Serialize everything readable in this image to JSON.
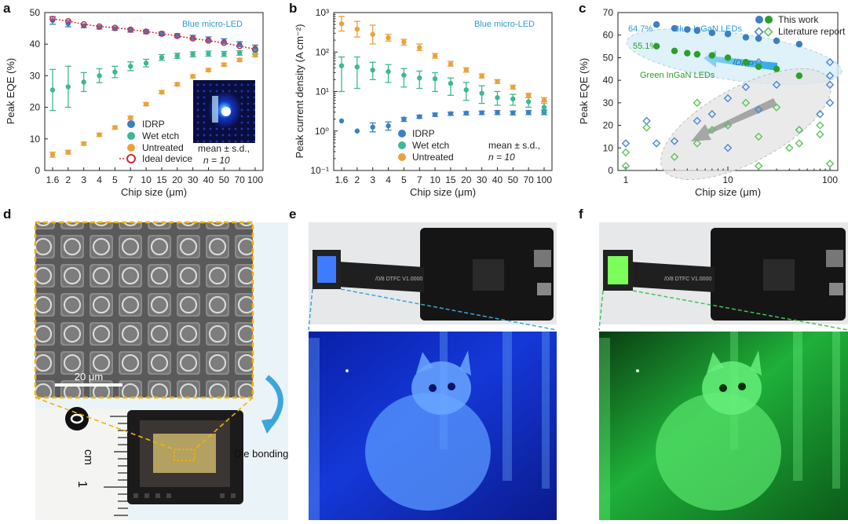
{
  "panel_labels": {
    "a": "a",
    "b": "b",
    "c": "c",
    "d": "d",
    "e": "e",
    "f": "f"
  },
  "colors": {
    "idrp": "#3b7fc4",
    "wet": "#3db894",
    "untreated": "#e8a23a",
    "ideal": "#d6263a",
    "blue_text": "#2a9bd1",
    "green_text": "#2aa02a",
    "lit_blue": "#4a86d8",
    "lit_green": "#5cc45c"
  },
  "chart_data": [
    {
      "type": "scatter",
      "panel": "a",
      "title": "Blue micro-LED",
      "xlabel": "Chip size (μm)",
      "ylabel": "Peak EQE (%)",
      "categories": [
        "1.6",
        "2",
        "3",
        "4",
        "5",
        "7",
        "10",
        "15",
        "20",
        "30",
        "40",
        "50",
        "70",
        "100"
      ],
      "ylim": [
        0,
        50
      ],
      "yticks": [
        "0",
        "10",
        "20",
        "30",
        "40",
        "50"
      ],
      "series": [
        {
          "name": "IDRP",
          "values": [
            47.5,
            46.5,
            45.8,
            45.3,
            44.9,
            44.4,
            43.9,
            43.3,
            42.7,
            42.1,
            41.5,
            40.9,
            40.0,
            38.8
          ],
          "err": [
            1.2,
            1.0,
            0.6,
            0.5,
            0.5,
            0.6,
            0.6,
            0.6,
            0.6,
            0.7,
            0.8,
            0.8,
            0.8,
            0.9
          ]
        },
        {
          "name": "Wet etch",
          "values": [
            25.5,
            26.5,
            28.0,
            30.0,
            31.2,
            33.0,
            34.0,
            35.8,
            36.3,
            36.8,
            37.0,
            36.9,
            37.2,
            37.5
          ],
          "err": [
            6.5,
            6.5,
            3.0,
            2.2,
            1.8,
            1.4,
            1.2,
            0.9,
            0.8,
            0.8,
            0.8,
            0.8,
            0.7,
            0.7
          ]
        },
        {
          "name": "Untreated",
          "values": [
            5.0,
            5.8,
            8.5,
            11.3,
            13.6,
            16.7,
            21.0,
            24.8,
            27.3,
            29.8,
            31.8,
            33.5,
            35.0,
            36.5
          ],
          "err": [
            0.8,
            0.6,
            0.5,
            0.5,
            0.5,
            0.5,
            0.5,
            0.5,
            0.5,
            0.5,
            0.5,
            0.5,
            0.5,
            0.5
          ]
        },
        {
          "name": "Ideal device",
          "values": [
            48.0,
            47.3,
            46.3,
            45.6,
            45.2,
            44.6,
            44.0,
            43.3,
            42.6,
            41.8,
            41.1,
            40.4,
            39.4,
            38.4
          ]
        }
      ],
      "legend_note": "mean ± s.d.,",
      "legend_n": "n = 10",
      "legend": "bottom-center"
    },
    {
      "type": "scatter",
      "panel": "b",
      "title": "Blue micro-LED",
      "xlabel": "Chip size (μm)",
      "ylabel": "Peak current density (A cm⁻²)",
      "categories": [
        "1.6",
        "2",
        "3",
        "4",
        "5",
        "7",
        "10",
        "15",
        "20",
        "30",
        "40",
        "50",
        "70",
        "100"
      ],
      "scale": "log",
      "ylim": [
        0.1,
        1000
      ],
      "yticks": [
        "10⁻¹",
        "10⁰",
        "10¹",
        "10²",
        "10³"
      ],
      "series": [
        {
          "name": "IDRP",
          "values": [
            1.8,
            1.0,
            1.25,
            1.35,
            2.0,
            2.3,
            2.6,
            2.75,
            2.85,
            2.9,
            2.95,
            2.9,
            2.95,
            3.0
          ],
          "err_lo": [
            1.8,
            1.0,
            0.95,
            1.05,
            1.75,
            2.1,
            2.35,
            2.5,
            2.55,
            2.6,
            2.6,
            2.55,
            2.6,
            2.6
          ],
          "err_hi": [
            1.8,
            1.0,
            1.6,
            1.7,
            2.2,
            2.5,
            2.85,
            3.0,
            3.1,
            3.2,
            3.3,
            3.2,
            3.3,
            3.4
          ]
        },
        {
          "name": "Wet etch",
          "values": [
            45,
            42,
            35,
            32,
            26,
            22,
            21,
            16,
            11,
            9,
            7,
            6.5,
            5.5,
            4.0
          ],
          "err_lo": [
            10,
            12,
            20,
            17,
            13,
            12,
            10,
            8,
            6,
            5,
            4.5,
            4.5,
            4.0,
            3.0
          ],
          "err_hi": [
            75,
            75,
            55,
            48,
            38,
            33,
            30,
            22,
            17,
            14,
            10,
            8.5,
            7.0,
            5.5
          ]
        },
        {
          "name": "Untreated",
          "values": [
            520,
            380,
            280,
            230,
            180,
            130,
            80,
            50,
            35,
            25,
            18,
            13,
            8,
            6
          ],
          "err_lo": [
            340,
            240,
            160,
            190,
            150,
            110,
            70,
            44,
            31,
            22,
            16,
            11.5,
            7,
            5
          ],
          "err_hi": [
            800,
            600,
            480,
            280,
            210,
            160,
            92,
            58,
            40,
            28,
            20,
            14.5,
            9,
            7
          ]
        }
      ],
      "legend_note": "mean ± s.d.,",
      "legend_n": "n = 10",
      "legend": "bottom-center"
    },
    {
      "type": "scatter",
      "panel": "c",
      "xlabel": "Chip size (μm)",
      "ylabel": "Peak EQE (%)",
      "scale_x": "log",
      "xlim": [
        1,
        100
      ],
      "xticks": [
        "1",
        "10",
        "100"
      ],
      "ylim": [
        0,
        70
      ],
      "yticks": [
        "0",
        "10",
        "20",
        "30",
        "40",
        "50",
        "60",
        "70"
      ],
      "series": [
        {
          "name": "This work (blue)",
          "x": [
            2,
            3,
            4,
            5,
            7,
            10,
            15,
            20,
            30,
            50
          ],
          "y": [
            64.7,
            63,
            62.5,
            62,
            61,
            60.5,
            59,
            58.5,
            57.5,
            56
          ]
        },
        {
          "name": "This work (green)",
          "x": [
            2,
            3,
            4,
            5,
            7,
            10,
            15,
            20,
            30,
            50
          ],
          "y": [
            55.1,
            53,
            52,
            51.5,
            51,
            50,
            48,
            46,
            45,
            42
          ]
        },
        {
          "name": "Literature (blue)",
          "x": [
            1,
            1.6,
            2,
            3,
            5,
            7,
            10,
            10,
            10,
            15,
            20,
            20,
            30,
            50,
            80,
            100,
            100,
            100,
            100
          ],
          "y": [
            12,
            22,
            12,
            13,
            22,
            25,
            20,
            32,
            10,
            37,
            48,
            27,
            38,
            18,
            25,
            48,
            42,
            38,
            30
          ]
        },
        {
          "name": "Literature (green)",
          "x": [
            1,
            1,
            1.6,
            3,
            5,
            5,
            7,
            10,
            15,
            20,
            20,
            30,
            40,
            50,
            50,
            80,
            100,
            80
          ],
          "y": [
            2,
            8,
            19,
            6,
            12,
            30,
            18,
            20,
            30,
            15,
            2,
            28,
            10,
            12,
            18,
            16,
            3,
            20
          ]
        }
      ],
      "annotations": {
        "blue_peak": "64.7%",
        "green_peak": "55.1%",
        "blue_group": "Blue InGaN LEDs",
        "green_group": "Green InGaN LEDs",
        "arrow": "IDRP"
      },
      "legend_items": [
        "This work",
        "Literature report"
      ],
      "legend": "top-right"
    }
  ],
  "panel_d": {
    "scale_bar": "20 μm",
    "ruler_unit": "cm",
    "ruler_one": "1",
    "bonding_label": "Die bonding"
  },
  "panel_e": {
    "pcb_text": "/0/8 DTFC V1.0000"
  },
  "panel_f": {
    "pcb_text": "/0/8 DTFC V1.0000"
  }
}
